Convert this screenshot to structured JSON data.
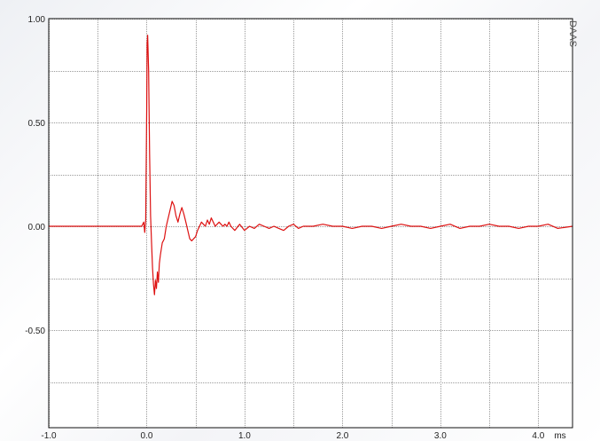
{
  "chart_data": {
    "type": "line",
    "title": "",
    "xlabel": "",
    "ylabel": "",
    "x_unit_label": "ms",
    "watermark": "DAAS",
    "xlim": [
      -1.0,
      4.35
    ],
    "ylim": [
      -0.97,
      1.0
    ],
    "x_ticks": [
      {
        "value": -1.0,
        "label": "-1.0"
      },
      {
        "value": 0.0,
        "label": "0.0"
      },
      {
        "value": 1.0,
        "label": "1.0"
      },
      {
        "value": 2.0,
        "label": "2.0"
      },
      {
        "value": 3.0,
        "label": "3.0"
      },
      {
        "value": 4.0,
        "label": "4.0"
      }
    ],
    "y_ticks": [
      {
        "value": 1.0,
        "label": "1.00"
      },
      {
        "value": 0.5,
        "label": "0.50"
      },
      {
        "value": 0.0,
        "label": "0.00"
      },
      {
        "value": -0.5,
        "label": "-0.50"
      }
    ],
    "x_grid": [
      -1.0,
      -0.5,
      0.0,
      0.5,
      1.0,
      1.5,
      2.0,
      2.5,
      3.0,
      3.5,
      4.0
    ],
    "y_grid": [
      1.0,
      0.75,
      0.5,
      0.25,
      0.0,
      -0.25,
      -0.5,
      -0.75
    ],
    "grid": true,
    "series": [
      {
        "color": "#dd1111",
        "x": [
          -1.0,
          -0.6,
          -0.2,
          -0.05,
          -0.03,
          -0.02,
          -0.01,
          0.0,
          0.005,
          0.01,
          0.02,
          0.03,
          0.04,
          0.05,
          0.06,
          0.07,
          0.08,
          0.09,
          0.1,
          0.11,
          0.12,
          0.13,
          0.14,
          0.16,
          0.18,
          0.2,
          0.22,
          0.24,
          0.26,
          0.28,
          0.3,
          0.32,
          0.34,
          0.36,
          0.38,
          0.4,
          0.42,
          0.44,
          0.46,
          0.48,
          0.5,
          0.52,
          0.54,
          0.56,
          0.58,
          0.6,
          0.62,
          0.64,
          0.66,
          0.68,
          0.7,
          0.72,
          0.74,
          0.76,
          0.78,
          0.8,
          0.82,
          0.84,
          0.86,
          0.88,
          0.9,
          0.95,
          1.0,
          1.05,
          1.1,
          1.15,
          1.2,
          1.25,
          1.3,
          1.35,
          1.4,
          1.45,
          1.5,
          1.55,
          1.6,
          1.7,
          1.8,
          1.9,
          2.0,
          2.1,
          2.2,
          2.3,
          2.4,
          2.5,
          2.6,
          2.7,
          2.8,
          2.9,
          3.0,
          3.1,
          3.2,
          3.3,
          3.4,
          3.5,
          3.6,
          3.7,
          3.8,
          3.9,
          4.0,
          4.1,
          4.2,
          4.35
        ],
        "y": [
          0.0,
          0.0,
          0.0,
          0.0,
          0.02,
          -0.03,
          0.03,
          0.55,
          0.88,
          0.92,
          0.75,
          0.35,
          0.05,
          -0.08,
          -0.2,
          -0.28,
          -0.33,
          -0.26,
          -0.3,
          -0.22,
          -0.27,
          -0.18,
          -0.14,
          -0.08,
          -0.06,
          0.0,
          0.04,
          0.08,
          0.12,
          0.1,
          0.05,
          0.02,
          0.06,
          0.09,
          0.06,
          0.02,
          -0.02,
          -0.06,
          -0.07,
          -0.06,
          -0.05,
          -0.02,
          0.0,
          0.02,
          0.01,
          0.0,
          0.03,
          0.01,
          0.04,
          0.02,
          0.0,
          0.01,
          0.02,
          0.01,
          0.0,
          0.01,
          0.0,
          0.02,
          0.0,
          -0.01,
          -0.02,
          0.01,
          -0.02,
          0.0,
          -0.01,
          0.01,
          0.0,
          -0.01,
          0.0,
          -0.01,
          -0.02,
          0.0,
          0.01,
          -0.01,
          0.0,
          0.0,
          0.01,
          0.0,
          0.0,
          -0.01,
          0.0,
          0.0,
          -0.01,
          0.0,
          0.01,
          0.0,
          0.0,
          -0.01,
          0.0,
          0.01,
          -0.01,
          0.0,
          0.0,
          0.01,
          0.0,
          0.0,
          -0.01,
          0.0,
          0.0,
          0.01,
          -0.01,
          0.0
        ]
      }
    ],
    "colors": {
      "frame": "#111111",
      "grid": "#9a9a9a",
      "plot_bg": "#ffffff"
    }
  }
}
